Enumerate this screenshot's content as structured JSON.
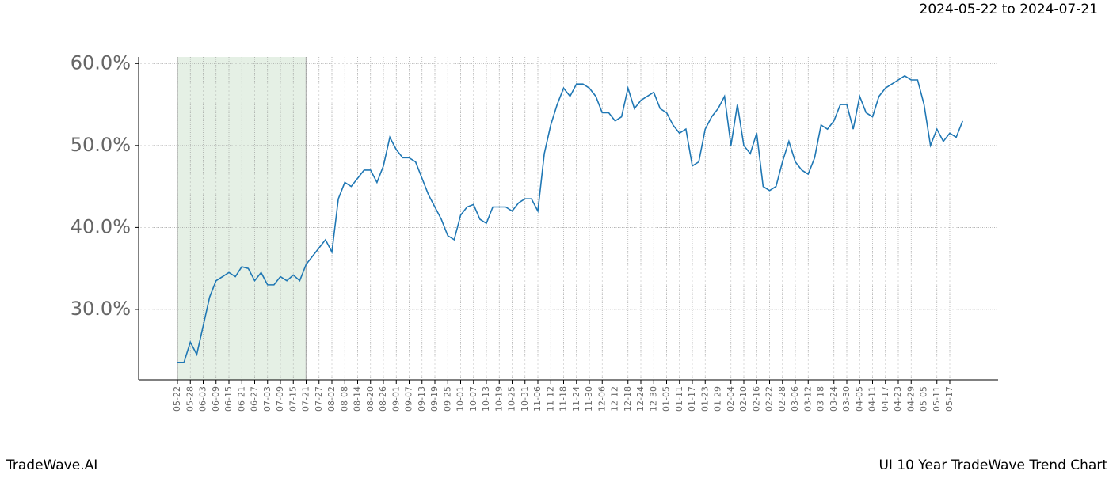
{
  "header": {
    "date_range": "2024-05-22 to 2024-07-21"
  },
  "footer": {
    "left": "TradeWave.AI",
    "right": "UI 10 Year TradeWave Trend Chart"
  },
  "chart_data": {
    "type": "line",
    "categories": [
      "05-22",
      null,
      "05-28",
      null,
      "06-03",
      null,
      "06-09",
      null,
      "06-15",
      null,
      "06-21",
      null,
      "06-27",
      null,
      "07-03",
      null,
      "07-09",
      null,
      "07-15",
      null,
      "07-21",
      null,
      "07-27",
      null,
      "08-02",
      null,
      "08-08",
      null,
      "08-14",
      null,
      "08-20",
      null,
      "08-26",
      null,
      "09-01",
      null,
      "09-07",
      null,
      "09-13",
      null,
      "09-19",
      null,
      "09-25",
      null,
      "10-01",
      null,
      "10-07",
      null,
      "10-13",
      null,
      "10-19",
      null,
      "10-25",
      null,
      "10-31",
      null,
      "11-06",
      null,
      "11-12",
      null,
      "11-18",
      null,
      "11-24",
      null,
      "11-30",
      null,
      "12-06",
      null,
      "12-12",
      null,
      "12-18",
      null,
      "12-24",
      null,
      "12-30",
      null,
      "01-05",
      null,
      "01-11",
      null,
      "01-17",
      null,
      "01-23",
      null,
      "01-29",
      null,
      "02-04",
      null,
      "02-10",
      null,
      "02-16",
      null,
      "02-22",
      null,
      "02-28",
      null,
      "03-06",
      null,
      "03-12",
      null,
      "03-18",
      null,
      "03-24",
      null,
      "03-30",
      null,
      "04-05",
      null,
      "04-11",
      null,
      "04-17",
      null,
      "04-23",
      null,
      "04-29",
      null,
      "05-05",
      null,
      "05-11",
      null,
      "05-17",
      null,
      null
    ],
    "series": [
      {
        "color": "#1f77b4",
        "values": [
          23.5,
          23.5,
          26,
          24.5,
          28,
          31.5,
          33.5,
          34,
          34.5,
          34,
          35.2,
          35,
          33.5,
          34.5,
          33,
          33,
          34,
          33.5,
          34.2,
          33.5,
          35.5,
          36.5,
          37.5,
          38.5,
          37,
          43.5,
          45.5,
          45,
          46,
          47,
          47,
          45.5,
          47.5,
          51,
          49.5,
          48.5,
          48.5,
          48,
          46,
          44,
          42.5,
          41,
          39,
          38.5,
          41.5,
          42.5,
          42.8,
          41,
          40.5,
          42.5,
          42.5,
          42.5,
          42,
          43,
          43.5,
          43.5,
          42,
          49,
          52.5,
          55,
          57,
          56,
          57.5,
          57.5,
          57,
          56,
          54,
          54,
          53,
          53.5,
          57,
          54.5,
          55.5,
          56,
          56.5,
          54.5,
          54,
          52.5,
          51.5,
          52,
          47.5,
          48,
          52,
          53.5,
          54.5,
          56,
          50,
          55,
          50,
          49,
          51.5,
          45,
          44.5,
          45,
          48,
          50.5,
          48,
          47,
          46.5,
          48.5,
          52.5,
          52,
          53,
          55,
          55,
          52,
          56,
          54,
          53.5,
          56,
          57,
          57.5,
          58,
          58.5,
          58,
          58,
          55,
          50,
          52,
          50.5,
          51.5,
          51,
          53
        ]
      }
    ],
    "ylim": [
      21.4,
      60.8
    ],
    "yticks": [
      {
        "value": 30,
        "label": "30.0%"
      },
      {
        "value": 40,
        "label": "40.0%"
      },
      {
        "value": 50,
        "label": "50.0%"
      },
      {
        "value": 60,
        "label": "60.0%"
      }
    ],
    "grid": true,
    "shade": {
      "from": "05-22",
      "to": "07-21",
      "color": "#e5f0e5",
      "edge": "#b8b8b8"
    }
  }
}
